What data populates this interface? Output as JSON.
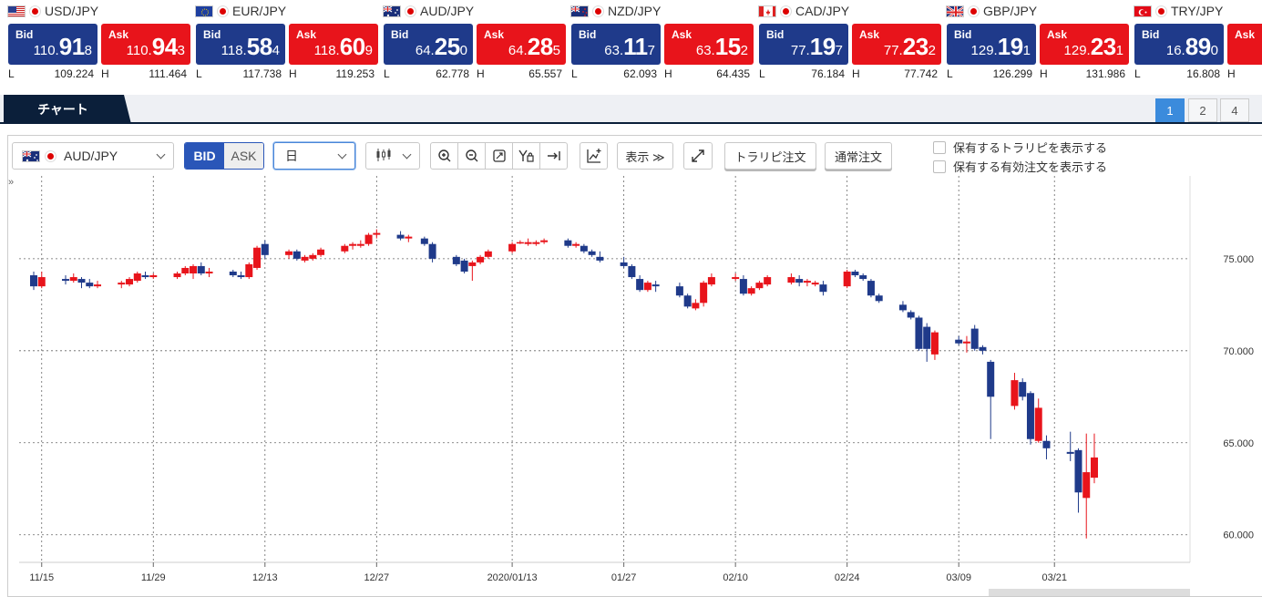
{
  "rates": [
    {
      "pair": "USD/JPY",
      "flag": "us",
      "bid": {
        "head": "110.",
        "big": "91",
        "tail": "8"
      },
      "ask": {
        "head": "110.",
        "big": "94",
        "tail": "3"
      },
      "low": "109.224",
      "high": "111.464"
    },
    {
      "pair": "EUR/JPY",
      "flag": "eu",
      "bid": {
        "head": "118.",
        "big": "58",
        "tail": "4"
      },
      "ask": {
        "head": "118.",
        "big": "60",
        "tail": "9"
      },
      "low": "117.738",
      "high": "119.253"
    },
    {
      "pair": "AUD/JPY",
      "flag": "au",
      "bid": {
        "head": "64.",
        "big": "25",
        "tail": "0"
      },
      "ask": {
        "head": "64.",
        "big": "28",
        "tail": "5"
      },
      "low": "62.778",
      "high": "65.557"
    },
    {
      "pair": "NZD/JPY",
      "flag": "nz",
      "bid": {
        "head": "63.",
        "big": "11",
        "tail": "7"
      },
      "ask": {
        "head": "63.",
        "big": "15",
        "tail": "2"
      },
      "low": "62.093",
      "high": "64.435"
    },
    {
      "pair": "CAD/JPY",
      "flag": "ca",
      "bid": {
        "head": "77.",
        "big": "19",
        "tail": "7"
      },
      "ask": {
        "head": "77.",
        "big": "23",
        "tail": "2"
      },
      "low": "76.184",
      "high": "77.742"
    },
    {
      "pair": "GBP/JPY",
      "flag": "gb",
      "bid": {
        "head": "129.",
        "big": "19",
        "tail": "1"
      },
      "ask": {
        "head": "129.",
        "big": "23",
        "tail": "1"
      },
      "low": "126.299",
      "high": "131.986"
    },
    {
      "pair": "TRY/JPY",
      "flag": "tr",
      "bid": {
        "head": "16.",
        "big": "89",
        "tail": "0"
      },
      "ask": {
        "head": "",
        "big": "",
        "tail": ""
      },
      "low": "16.808",
      "high": ""
    }
  ],
  "labels": {
    "bid": "Bid",
    "ask": "Ask",
    "low": "L",
    "high": "H"
  },
  "tabbar": {
    "chart_tab": "チャート",
    "pages": [
      "1",
      "2",
      "4"
    ],
    "active_page": "1"
  },
  "toolbar": {
    "pair_value": "AUD/JPY",
    "bid_label": "BID",
    "ask_label": "ASK",
    "period_value": "日",
    "display_label": "表示 ≫",
    "trarepi_order": "トラリピ注文",
    "normal_order": "通常注文",
    "check_show_trarepi": "保有するトラリピを表示する",
    "check_show_orders": "保有する有効注文を表示する",
    "collapse_glyph": "»"
  },
  "colors": {
    "bid_box": "#1f3a8a",
    "ask_box": "#e8141b",
    "candle_down": "#1f3a8a",
    "candle_up": "#e8141b",
    "active_page": "#3b8bdc",
    "tab_dark": "#0b1f3a"
  },
  "chart_data": {
    "type": "candlestick",
    "pair": "AUD/JPY",
    "period": "日",
    "ylim": [
      58.5,
      79.5
    ],
    "y_ticks": [
      "60.000",
      "65.000",
      "70.000",
      "75.000"
    ],
    "x_ticks": [
      {
        "date": "2019-11-15",
        "label": "11/15"
      },
      {
        "date": "2019-11-29",
        "label": "11/29"
      },
      {
        "date": "2019-12-13",
        "label": "12/13"
      },
      {
        "date": "2019-12-27",
        "label": "12/27"
      },
      {
        "date": "2020-01-13",
        "label": "2020/01/13"
      },
      {
        "date": "2020-01-27",
        "label": "01/27"
      },
      {
        "date": "2020-02-10",
        "label": "02/10"
      },
      {
        "date": "2020-02-24",
        "label": "02/24"
      },
      {
        "date": "2020-03-09",
        "label": "03/09"
      },
      {
        "date": "2020-03-21",
        "label": "03/21"
      }
    ],
    "grid": true,
    "candles": [
      {
        "date": "2019-11-14",
        "o": 74.1,
        "h": 74.3,
        "l": 73.3,
        "c": 73.5
      },
      {
        "date": "2019-11-15",
        "o": 73.5,
        "h": 74.3,
        "l": 73.4,
        "c": 74.0
      },
      {
        "date": "2019-11-18",
        "o": 73.9,
        "h": 74.1,
        "l": 73.6,
        "c": 73.8
      },
      {
        "date": "2019-11-19",
        "o": 73.8,
        "h": 74.2,
        "l": 73.7,
        "c": 74.0
      },
      {
        "date": "2019-11-20",
        "o": 73.9,
        "h": 74.0,
        "l": 73.4,
        "c": 73.7
      },
      {
        "date": "2019-11-21",
        "o": 73.7,
        "h": 73.9,
        "l": 73.4,
        "c": 73.5
      },
      {
        "date": "2019-11-22",
        "o": 73.5,
        "h": 73.8,
        "l": 73.4,
        "c": 73.6
      },
      {
        "date": "2019-11-25",
        "o": 73.6,
        "h": 73.8,
        "l": 73.4,
        "c": 73.7
      },
      {
        "date": "2019-11-26",
        "o": 73.6,
        "h": 74.0,
        "l": 73.5,
        "c": 73.9
      },
      {
        "date": "2019-11-27",
        "o": 73.8,
        "h": 74.3,
        "l": 73.7,
        "c": 74.2
      },
      {
        "date": "2019-11-28",
        "o": 74.1,
        "h": 74.3,
        "l": 73.9,
        "c": 74.0
      },
      {
        "date": "2019-11-29",
        "o": 74.0,
        "h": 74.2,
        "l": 73.9,
        "c": 74.1
      },
      {
        "date": "2019-12-02",
        "o": 74.0,
        "h": 74.3,
        "l": 73.9,
        "c": 74.2
      },
      {
        "date": "2019-12-03",
        "o": 74.2,
        "h": 74.6,
        "l": 74.1,
        "c": 74.5
      },
      {
        "date": "2019-12-04",
        "o": 74.2,
        "h": 74.7,
        "l": 73.9,
        "c": 74.6
      },
      {
        "date": "2019-12-05",
        "o": 74.6,
        "h": 74.8,
        "l": 74.1,
        "c": 74.2
      },
      {
        "date": "2019-12-06",
        "o": 74.2,
        "h": 74.5,
        "l": 74.0,
        "c": 74.3
      },
      {
        "date": "2019-12-09",
        "o": 74.3,
        "h": 74.4,
        "l": 74.0,
        "c": 74.1
      },
      {
        "date": "2019-12-10",
        "o": 74.1,
        "h": 74.3,
        "l": 73.9,
        "c": 74.0
      },
      {
        "date": "2019-12-11",
        "o": 74.0,
        "h": 74.8,
        "l": 73.9,
        "c": 74.7
      },
      {
        "date": "2019-12-12",
        "o": 74.5,
        "h": 75.7,
        "l": 74.4,
        "c": 75.6
      },
      {
        "date": "2019-12-13",
        "o": 75.8,
        "h": 76.0,
        "l": 75.0,
        "c": 75.2
      },
      {
        "date": "2019-12-16",
        "o": 75.2,
        "h": 75.5,
        "l": 75.0,
        "c": 75.4
      },
      {
        "date": "2019-12-17",
        "o": 75.4,
        "h": 75.5,
        "l": 74.9,
        "c": 75.0
      },
      {
        "date": "2019-12-18",
        "o": 74.9,
        "h": 75.2,
        "l": 74.8,
        "c": 75.1
      },
      {
        "date": "2019-12-19",
        "o": 75.0,
        "h": 75.3,
        "l": 74.9,
        "c": 75.2
      },
      {
        "date": "2019-12-20",
        "o": 75.2,
        "h": 75.6,
        "l": 75.1,
        "c": 75.5
      },
      {
        "date": "2019-12-23",
        "o": 75.4,
        "h": 75.8,
        "l": 75.3,
        "c": 75.7
      },
      {
        "date": "2019-12-24",
        "o": 75.7,
        "h": 75.9,
        "l": 75.5,
        "c": 75.8
      },
      {
        "date": "2019-12-25",
        "o": 75.7,
        "h": 76.0,
        "l": 75.6,
        "c": 75.8
      },
      {
        "date": "2019-12-26",
        "o": 75.8,
        "h": 76.4,
        "l": 75.7,
        "c": 76.3
      },
      {
        "date": "2019-12-27",
        "o": 76.3,
        "h": 76.6,
        "l": 76.1,
        "c": 76.4
      },
      {
        "date": "2019-12-30",
        "o": 76.3,
        "h": 76.5,
        "l": 76.0,
        "c": 76.1
      },
      {
        "date": "2019-12-31",
        "o": 76.1,
        "h": 76.3,
        "l": 75.9,
        "c": 76.2
      },
      {
        "date": "2020-01-02",
        "o": 76.1,
        "h": 76.2,
        "l": 75.7,
        "c": 75.8
      },
      {
        "date": "2020-01-03",
        "o": 75.8,
        "h": 75.9,
        "l": 74.8,
        "c": 75.0
      },
      {
        "date": "2020-01-06",
        "o": 75.1,
        "h": 75.2,
        "l": 74.6,
        "c": 74.7
      },
      {
        "date": "2020-01-07",
        "o": 74.9,
        "h": 75.0,
        "l": 74.2,
        "c": 74.3
      },
      {
        "date": "2020-01-08",
        "o": 74.6,
        "h": 74.9,
        "l": 73.8,
        "c": 74.8
      },
      {
        "date": "2020-01-09",
        "o": 74.8,
        "h": 75.2,
        "l": 74.7,
        "c": 75.1
      },
      {
        "date": "2020-01-10",
        "o": 75.1,
        "h": 75.5,
        "l": 75.0,
        "c": 75.4
      },
      {
        "date": "2020-01-13",
        "o": 75.4,
        "h": 75.9,
        "l": 75.3,
        "c": 75.8
      },
      {
        "date": "2020-01-14",
        "o": 75.9,
        "h": 76.0,
        "l": 75.8,
        "c": 75.9
      },
      {
        "date": "2020-01-15",
        "o": 75.8,
        "h": 76.1,
        "l": 75.7,
        "c": 75.9
      },
      {
        "date": "2020-01-16",
        "o": 75.8,
        "h": 76.0,
        "l": 75.7,
        "c": 75.9
      },
      {
        "date": "2020-01-17",
        "o": 75.9,
        "h": 76.1,
        "l": 75.8,
        "c": 76.0
      },
      {
        "date": "2020-01-20",
        "o": 76.0,
        "h": 76.1,
        "l": 75.6,
        "c": 75.7
      },
      {
        "date": "2020-01-21",
        "o": 75.7,
        "h": 75.9,
        "l": 75.6,
        "c": 75.8
      },
      {
        "date": "2020-01-22",
        "o": 75.7,
        "h": 75.8,
        "l": 75.3,
        "c": 75.4
      },
      {
        "date": "2020-01-23",
        "o": 75.4,
        "h": 75.5,
        "l": 75.1,
        "c": 75.2
      },
      {
        "date": "2020-01-24",
        "o": 75.1,
        "h": 75.4,
        "l": 74.8,
        "c": 74.9
      },
      {
        "date": "2020-01-27",
        "o": 74.8,
        "h": 75.1,
        "l": 74.5,
        "c": 74.6
      },
      {
        "date": "2020-01-28",
        "o": 74.6,
        "h": 74.7,
        "l": 73.9,
        "c": 74.0
      },
      {
        "date": "2020-01-29",
        "o": 73.9,
        "h": 74.1,
        "l": 73.2,
        "c": 73.3
      },
      {
        "date": "2020-01-30",
        "o": 73.3,
        "h": 73.8,
        "l": 73.2,
        "c": 73.7
      },
      {
        "date": "2020-01-31",
        "o": 73.6,
        "h": 73.8,
        "l": 73.2,
        "c": 73.5
      },
      {
        "date": "2020-02-03",
        "o": 73.5,
        "h": 73.7,
        "l": 72.9,
        "c": 73.0
      },
      {
        "date": "2020-02-04",
        "o": 73.0,
        "h": 73.1,
        "l": 72.3,
        "c": 72.4
      },
      {
        "date": "2020-02-05",
        "o": 72.3,
        "h": 72.8,
        "l": 72.2,
        "c": 72.6
      },
      {
        "date": "2020-02-06",
        "o": 72.6,
        "h": 73.8,
        "l": 72.4,
        "c": 73.7
      },
      {
        "date": "2020-02-07",
        "o": 73.6,
        "h": 74.2,
        "l": 73.5,
        "c": 74.0
      },
      {
        "date": "2020-02-10",
        "o": 73.9,
        "h": 74.2,
        "l": 73.8,
        "c": 74.0
      },
      {
        "date": "2020-02-11",
        "o": 73.9,
        "h": 74.1,
        "l": 73.0,
        "c": 73.1
      },
      {
        "date": "2020-02-12",
        "o": 73.1,
        "h": 73.5,
        "l": 73.0,
        "c": 73.4
      },
      {
        "date": "2020-02-13",
        "o": 73.4,
        "h": 73.8,
        "l": 73.3,
        "c": 73.7
      },
      {
        "date": "2020-02-14",
        "o": 73.6,
        "h": 74.1,
        "l": 73.5,
        "c": 74.0
      },
      {
        "date": "2020-02-17",
        "o": 73.7,
        "h": 74.2,
        "l": 73.6,
        "c": 74.0
      },
      {
        "date": "2020-02-18",
        "o": 73.9,
        "h": 74.1,
        "l": 73.5,
        "c": 73.7
      },
      {
        "date": "2020-02-19",
        "o": 73.7,
        "h": 73.9,
        "l": 73.5,
        "c": 73.8
      },
      {
        "date": "2020-02-20",
        "o": 73.6,
        "h": 73.8,
        "l": 73.5,
        "c": 73.7
      },
      {
        "date": "2020-02-21",
        "o": 73.6,
        "h": 73.8,
        "l": 73.0,
        "c": 73.2
      },
      {
        "date": "2020-02-24",
        "o": 73.5,
        "h": 74.4,
        "l": 73.4,
        "c": 74.3
      },
      {
        "date": "2020-02-25",
        "o": 74.3,
        "h": 74.4,
        "l": 74.0,
        "c": 74.1
      },
      {
        "date": "2020-02-26",
        "o": 74.1,
        "h": 74.2,
        "l": 73.8,
        "c": 73.9
      },
      {
        "date": "2020-02-27",
        "o": 73.8,
        "h": 73.9,
        "l": 72.9,
        "c": 73.0
      },
      {
        "date": "2020-02-28",
        "o": 73.0,
        "h": 73.1,
        "l": 72.6,
        "c": 72.7
      },
      {
        "date": "2020-03-02",
        "o": 72.5,
        "h": 72.7,
        "l": 72.1,
        "c": 72.2
      },
      {
        "date": "2020-03-03",
        "o": 72.1,
        "h": 72.2,
        "l": 71.7,
        "c": 71.8
      },
      {
        "date": "2020-03-04",
        "o": 71.8,
        "h": 71.9,
        "l": 70.0,
        "c": 70.1
      },
      {
        "date": "2020-03-05",
        "o": 71.3,
        "h": 71.5,
        "l": 69.4,
        "c": 70.1
      },
      {
        "date": "2020-03-06",
        "o": 69.8,
        "h": 71.1,
        "l": 69.5,
        "c": 71.0
      },
      {
        "date": "2020-03-09",
        "o": 70.6,
        "h": 70.8,
        "l": 70.3,
        "c": 70.4
      },
      {
        "date": "2020-03-10",
        "o": 70.4,
        "h": 70.8,
        "l": 69.9,
        "c": 70.5
      },
      {
        "date": "2020-03-11",
        "o": 71.2,
        "h": 71.4,
        "l": 70.0,
        "c": 70.1
      },
      {
        "date": "2020-03-12",
        "o": 70.2,
        "h": 70.3,
        "l": 69.8,
        "c": 70.0
      },
      {
        "date": "2020-03-13",
        "o": 69.4,
        "h": 69.5,
        "l": 65.2,
        "c": 67.5
      },
      {
        "date": "2020-03-16",
        "o": 67.0,
        "h": 68.8,
        "l": 66.8,
        "c": 68.4
      },
      {
        "date": "2020-03-17",
        "o": 68.3,
        "h": 68.5,
        "l": 67.3,
        "c": 67.5
      },
      {
        "date": "2020-03-18",
        "o": 67.7,
        "h": 67.8,
        "l": 64.9,
        "c": 65.2
      },
      {
        "date": "2020-03-19",
        "o": 65.1,
        "h": 67.4,
        "l": 65.0,
        "c": 66.9
      },
      {
        "date": "2020-03-20",
        "o": 65.1,
        "h": 65.4,
        "l": 64.1,
        "c": 64.7
      },
      {
        "date": "2020-03-23",
        "o": 64.5,
        "h": 65.6,
        "l": 64.0,
        "c": 64.4
      },
      {
        "date": "2020-03-24",
        "o": 64.6,
        "h": 64.7,
        "l": 61.2,
        "c": 62.3
      },
      {
        "date": "2020-03-25",
        "o": 62.0,
        "h": 65.5,
        "l": 59.8,
        "c": 63.4
      },
      {
        "date": "2020-03-26",
        "o": 63.1,
        "h": 65.5,
        "l": 62.8,
        "c": 64.2
      }
    ]
  }
}
